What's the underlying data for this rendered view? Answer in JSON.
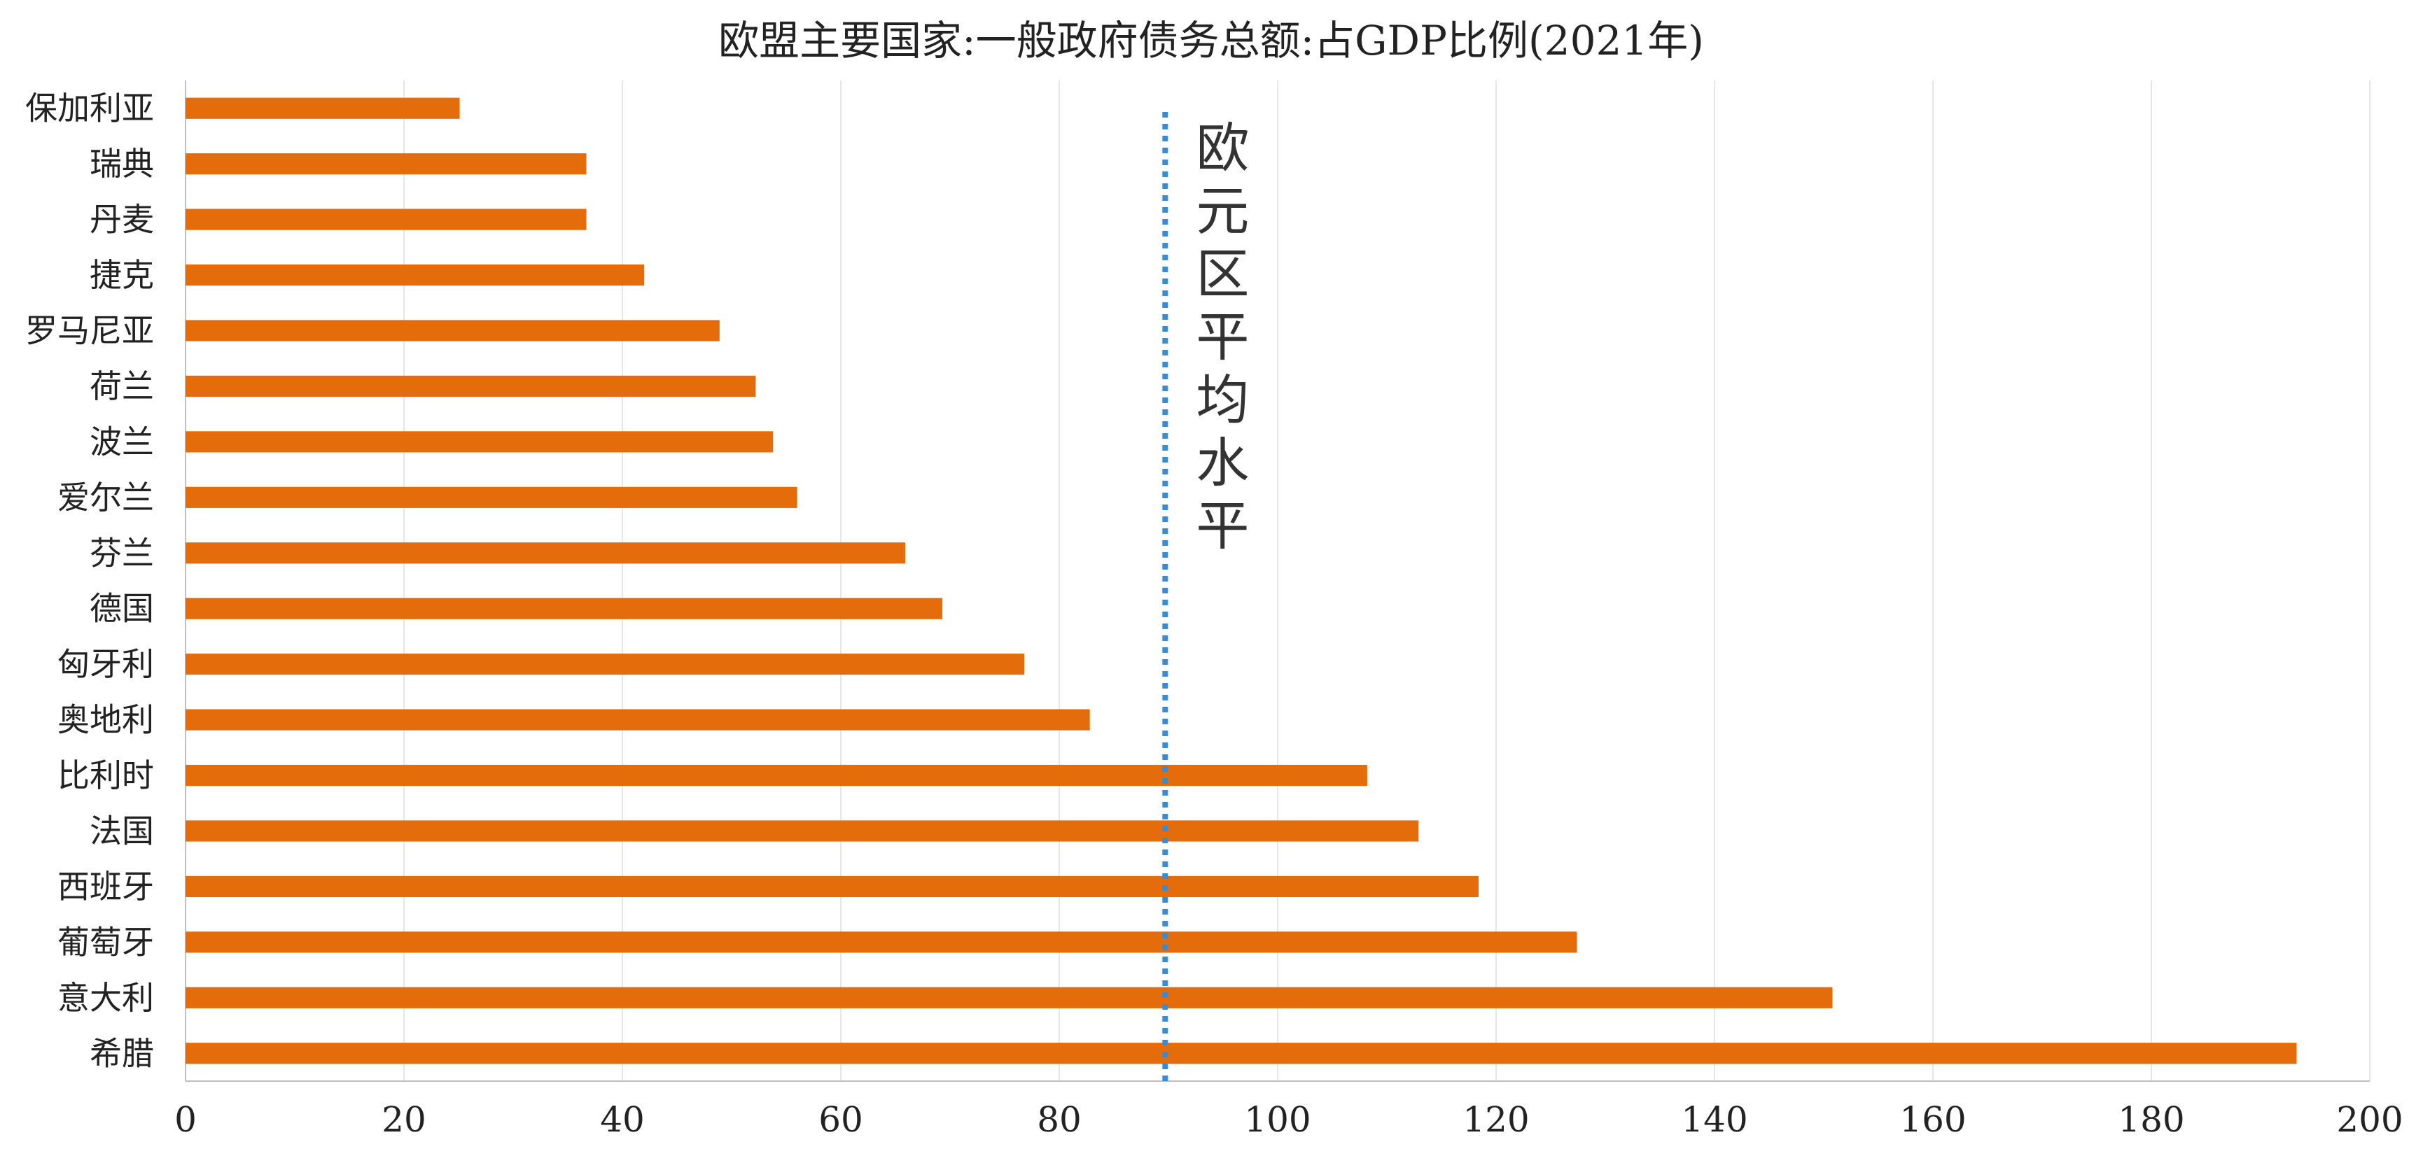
{
  "chart_data": {
    "type": "bar",
    "orientation": "horizontal",
    "title": "欧盟主要国家:一般政府债务总额:占GDP比例(2021年)",
    "categories": [
      "保加利亚",
      "瑞典",
      "丹麦",
      "捷克",
      "罗马尼亚",
      "荷兰",
      "波兰",
      "爱尔兰",
      "芬兰",
      "德国",
      "匈牙利",
      "奥地利",
      "比利时",
      "法国",
      "西班牙",
      "葡萄牙",
      "意大利",
      "希腊"
    ],
    "values": [
      25.1,
      36.7,
      36.7,
      42.0,
      48.9,
      52.2,
      53.8,
      56.0,
      65.9,
      69.3,
      76.8,
      82.8,
      108.2,
      112.9,
      118.4,
      127.4,
      150.8,
      193.3
    ],
    "xlim": [
      0,
      200
    ],
    "xticks": [
      0,
      20,
      40,
      60,
      80,
      100,
      120,
      140,
      160,
      180,
      200
    ],
    "bar_color": "#e46c0a",
    "grid": true,
    "reference_line": {
      "value": 89.7,
      "label": "欧元区平均水平",
      "color": "#3b8bd0",
      "style": "dotted"
    }
  }
}
